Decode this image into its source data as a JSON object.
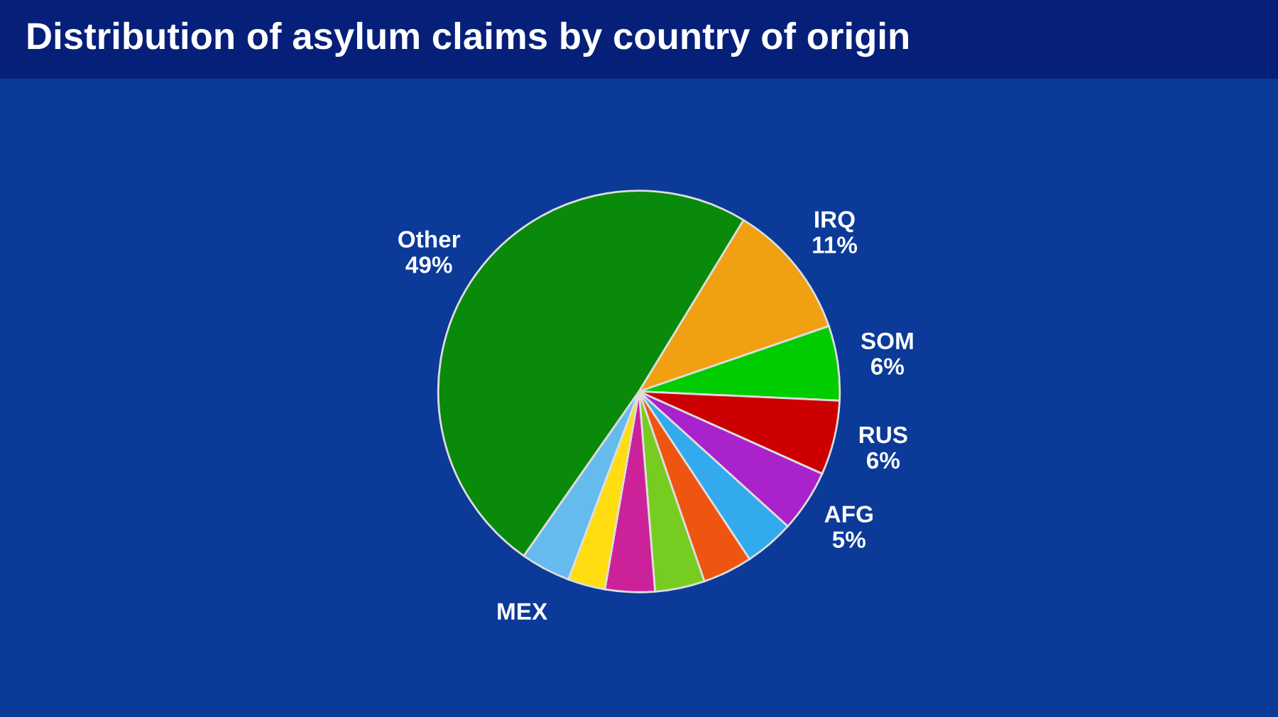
{
  "chart_data": {
    "type": "pie",
    "title": "Distribution of asylum claims by country of origin",
    "categories": [
      "Other",
      "IRQ",
      "SOM",
      "RUS",
      "AFG",
      null,
      null,
      null,
      null,
      null,
      "MEX"
    ],
    "values": [
      49,
      11,
      6,
      6,
      5,
      4,
      4,
      4,
      4,
      3,
      4
    ],
    "value_labels": [
      "49%",
      "11%",
      "6%",
      "6%",
      "5%",
      null,
      null,
      null,
      null,
      null,
      null
    ],
    "colors": [
      "#0a8a0a",
      "#f0a010",
      "#00cc00",
      "#cc0000",
      "#aa22cc",
      "#33aaee",
      "#ee5511",
      "#77cc22",
      "#cc2299",
      "#ffdd11",
      "#66bbee"
    ],
    "legend": false
  }
}
